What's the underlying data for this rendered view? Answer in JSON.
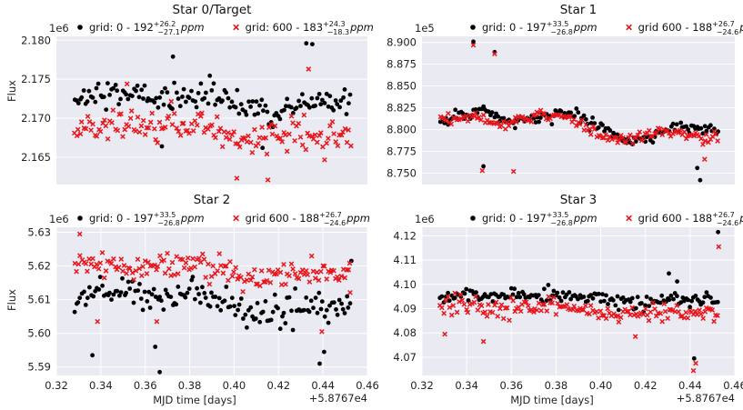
{
  "figure": {
    "xlabel": "MJD time [days]",
    "ylabel": "Flux",
    "x_offset_label": "+5.8767e4",
    "colors": {
      "panel_bg": "#EAEAF2",
      "grid": "#FFFFFF",
      "series_grid0": "#000000",
      "series_grid600": "#E8151B"
    }
  },
  "chart_data": [
    {
      "type": "scatter",
      "title": "Star 0/Target",
      "ylabel": "Flux",
      "y_scale_label": "1e6",
      "xlim": [
        0.32,
        0.46
      ],
      "ylim": [
        2.1615,
        2.1805
      ],
      "y_ticks": [
        2.165,
        2.17,
        2.175,
        2.18
      ],
      "y_tick_labels": [
        "2.165",
        "2.170",
        "2.175",
        "2.180"
      ],
      "x_ticks": [],
      "x_tick_labels": [],
      "legend": [
        {
          "label": "grid: 0 - 192",
          "sup": "+26.2",
          "sub": "−27.1",
          "unit": "ppm",
          "marker": "dot"
        },
        {
          "label": "grid: 600 - 183",
          "sup": "+24.3",
          "sub": "−18.3",
          "unit": "ppm",
          "marker": "x"
        }
      ],
      "time_range": [
        0.328,
        0.453
      ],
      "n_points": 150,
      "series": [
        {
          "name": "grid 0",
          "marker": "dot",
          "center": 2.1723,
          "amplitude": 0.0009,
          "noise": 0.0016,
          "outliers": [
            {
              "x": 0.3725,
              "y": 2.1779
            },
            {
              "x": 0.4325,
              "y": 2.1796
            },
            {
              "x": 0.4352,
              "y": 2.1795
            },
            {
              "x": 0.4128,
              "y": 2.1662
            },
            {
              "x": 0.3675,
              "y": 2.1664
            }
          ]
        },
        {
          "name": "grid 600",
          "marker": "x",
          "center": 2.1681,
          "amplitude": 0.0008,
          "noise": 0.0018,
          "outliers": [
            {
              "x": 0.4335,
              "y": 2.1763
            },
            {
              "x": 0.4012,
              "y": 2.1623
            },
            {
              "x": 0.4152,
              "y": 2.1621
            },
            {
              "x": 0.3518,
              "y": 2.1744
            }
          ]
        }
      ]
    },
    {
      "type": "scatter",
      "title": "Star 1",
      "ylabel": "",
      "y_scale_label": "1e5",
      "xlim": [
        0.32,
        0.46
      ],
      "ylim": [
        8.737,
        8.907
      ],
      "y_ticks": [
        8.75,
        8.775,
        8.8,
        8.825,
        8.85,
        8.875,
        8.9
      ],
      "y_tick_labels": [
        "8.750",
        "8.775",
        "8.800",
        "8.825",
        "8.850",
        "8.875",
        "8.900"
      ],
      "x_ticks": [],
      "x_tick_labels": [],
      "legend": [
        {
          "label": "grid: 0 - 197",
          "sup": "+33.5",
          "sub": "−26.8",
          "unit": "ppm",
          "marker": "dot"
        },
        {
          "label": "grid 600 - 188",
          "sup": "+26.7",
          "sub": "−24.6",
          "unit": "ppm",
          "marker": "x"
        }
      ],
      "time_range": [
        0.328,
        0.453
      ],
      "n_points": 150,
      "series": [
        {
          "name": "grid 0",
          "marker": "dot",
          "center": 8.806,
          "amplitude": 0.012,
          "noise": 0.006,
          "outliers": [
            {
              "x": 0.343,
              "y": 8.901
            },
            {
              "x": 0.3525,
              "y": 8.889
            },
            {
              "x": 0.4445,
              "y": 8.742
            },
            {
              "x": 0.3475,
              "y": 8.758
            },
            {
              "x": 0.4432,
              "y": 8.756
            }
          ]
        },
        {
          "name": "grid 600",
          "marker": "x",
          "center": 8.803,
          "amplitude": 0.012,
          "noise": 0.006,
          "outliers": [
            {
              "x": 0.343,
              "y": 8.897
            },
            {
              "x": 0.3525,
              "y": 8.887
            },
            {
              "x": 0.361,
              "y": 8.752
            },
            {
              "x": 0.347,
              "y": 8.753
            },
            {
              "x": 0.4465,
              "y": 8.766
            }
          ]
        }
      ]
    },
    {
      "type": "scatter",
      "title": "Star 2",
      "ylabel": "Flux",
      "y_scale_label": "1e6",
      "xlim": [
        0.32,
        0.46
      ],
      "ylim": [
        5.5875,
        5.6315
      ],
      "y_ticks": [
        5.59,
        5.6,
        5.61,
        5.62,
        5.63
      ],
      "y_tick_labels": [
        "5.59",
        "5.60",
        "5.61",
        "5.62",
        "5.63"
      ],
      "x_ticks": [
        0.32,
        0.34,
        0.36,
        0.38,
        0.4,
        0.42,
        0.44,
        0.46
      ],
      "x_tick_labels": [
        "0.32",
        "0.34",
        "0.36",
        "0.38",
        "0.40",
        "0.42",
        "0.44",
        "0.46"
      ],
      "legend": [
        {
          "label": "grid: 0 - 197",
          "sup": "+33.5",
          "sub": "−26.8",
          "unit": "ppm",
          "marker": "dot"
        },
        {
          "label": "grid 600 - 188",
          "sup": "+26.7",
          "sub": "−24.6",
          "unit": "ppm",
          "marker": "x"
        }
      ],
      "time_range": [
        0.328,
        0.453
      ],
      "n_points": 150,
      "series": [
        {
          "name": "grid 0",
          "marker": "dot",
          "center": 5.6095,
          "amplitude": 0.0025,
          "noise": 0.0042,
          "outliers": [
            {
              "x": 0.3665,
              "y": 5.5885
            },
            {
              "x": 0.4385,
              "y": 5.591
            },
            {
              "x": 0.3362,
              "y": 5.5935
            },
            {
              "x": 0.3645,
              "y": 5.596
            },
            {
              "x": 0.4405,
              "y": 5.5945
            },
            {
              "x": 0.4528,
              "y": 5.6215
            }
          ]
        },
        {
          "name": "grid 600",
          "marker": "x",
          "center": 5.619,
          "amplitude": 0.0022,
          "noise": 0.0038,
          "outliers": [
            {
              "x": 0.3305,
              "y": 5.6295
            },
            {
              "x": 0.3385,
              "y": 5.6035
            },
            {
              "x": 0.3652,
              "y": 5.6035
            },
            {
              "x": 0.4395,
              "y": 5.6005
            },
            {
              "x": 0.452,
              "y": 5.6208
            }
          ]
        }
      ]
    },
    {
      "type": "scatter",
      "title": "Star 3",
      "ylabel": "",
      "y_scale_label": "1e6",
      "xlim": [
        0.32,
        0.46
      ],
      "ylim": [
        4.0625,
        4.1235
      ],
      "y_ticks": [
        4.07,
        4.08,
        4.09,
        4.1,
        4.11,
        4.12
      ],
      "y_tick_labels": [
        "4.07",
        "4.08",
        "4.09",
        "4.10",
        "4.11",
        "4.12"
      ],
      "x_ticks": [
        0.32,
        0.34,
        0.36,
        0.38,
        0.4,
        0.42,
        0.44,
        0.46
      ],
      "x_tick_labels": [
        "0.32",
        "0.34",
        "0.36",
        "0.38",
        "0.40",
        "0.42",
        "0.44",
        "0.46"
      ],
      "legend": [
        {
          "label": "grid: 0 - 197",
          "sup": "+33.5",
          "sub": "−26.8",
          "unit": "ppm",
          "marker": "dot"
        },
        {
          "label": "grid 600 - 188",
          "sup": "+26.7",
          "sub": "−24.6",
          "unit": "ppm",
          "marker": "x"
        }
      ],
      "time_range": [
        0.328,
        0.453
      ],
      "n_points": 150,
      "series": [
        {
          "name": "grid 0",
          "marker": "dot",
          "center": 4.0945,
          "amplitude": 0.0015,
          "noise": 0.0028,
          "outliers": [
            {
              "x": 0.4525,
              "y": 4.1215
            },
            {
              "x": 0.4418,
              "y": 4.0695
            },
            {
              "x": 0.4305,
              "y": 4.1045
            },
            {
              "x": 0.4342,
              "y": 4.1012
            }
          ]
        },
        {
          "name": "grid 600",
          "marker": "x",
          "center": 4.0895,
          "amplitude": 0.0014,
          "noise": 0.0032,
          "outliers": [
            {
              "x": 0.4528,
              "y": 4.1155
            },
            {
              "x": 0.4415,
              "y": 4.0645
            },
            {
              "x": 0.4425,
              "y": 4.0675
            },
            {
              "x": 0.3475,
              "y": 4.0765
            },
            {
              "x": 0.4155,
              "y": 4.0785
            },
            {
              "x": 0.3302,
              "y": 4.0795
            }
          ]
        }
      ]
    }
  ]
}
